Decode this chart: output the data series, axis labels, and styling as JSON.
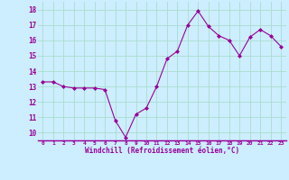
{
  "x": [
    0,
    1,
    2,
    3,
    4,
    5,
    6,
    7,
    8,
    9,
    10,
    11,
    12,
    13,
    14,
    15,
    16,
    17,
    18,
    19,
    20,
    21,
    22,
    23
  ],
  "y": [
    13.3,
    13.3,
    13.0,
    12.9,
    12.9,
    12.9,
    12.8,
    10.8,
    9.7,
    11.2,
    11.6,
    13.0,
    14.8,
    15.3,
    17.0,
    17.9,
    16.9,
    16.3,
    16.0,
    15.0,
    16.2,
    16.7,
    16.3,
    15.6
  ],
  "line_color": "#990099",
  "marker": "D",
  "marker_size": 2.0,
  "bg_color": "#cceeff",
  "grid_color": "#aaddcc",
  "xlabel": "Windchill (Refroidissement éolien,°C)",
  "xlabel_color": "#990099",
  "tick_color": "#990099",
  "ylim": [
    9.5,
    18.5
  ],
  "xlim": [
    -0.5,
    23.5
  ],
  "yticks": [
    10,
    11,
    12,
    13,
    14,
    15,
    16,
    17,
    18
  ],
  "xtick_labels": [
    "0",
    "1",
    "2",
    "3",
    "4",
    "5",
    "6",
    "7",
    "8",
    "9",
    "10",
    "11",
    "12",
    "13",
    "14",
    "15",
    "16",
    "17",
    "18",
    "19",
    "20",
    "21",
    "22",
    "23"
  ]
}
